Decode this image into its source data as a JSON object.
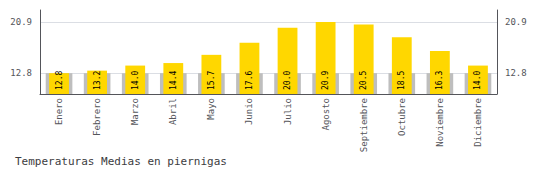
{
  "chart_data": {
    "type": "bar",
    "title": "Temperaturas Medias en piernigas",
    "categories": [
      "Enero",
      "Febrero",
      "Marzo",
      "Abril",
      "Mayo",
      "Junio",
      "Julio",
      "Agosto",
      "Septiembre",
      "Octubre",
      "Noviembre",
      "Diciembre"
    ],
    "series": [
      {
        "color": "#BEBEBE",
        "values": [
          12.8,
          12.8,
          12.8,
          12.8,
          12.8,
          12.8,
          12.8,
          12.8,
          12.8,
          12.8,
          12.8,
          12.8
        ]
      },
      {
        "color": "#FFD700",
        "values": [
          12.8,
          13.2,
          14.0,
          14.4,
          15.7,
          17.6,
          20.0,
          20.9,
          20.5,
          18.5,
          16.3,
          14.0
        ],
        "value_labels": [
          "12.8",
          "13.2",
          "14.0",
          "14.4",
          "15.7",
          "17.6",
          "20.0",
          "20.9",
          "20.5",
          "18.5",
          "16.3",
          "14.0"
        ],
        "data_labels": true
      }
    ],
    "ylim": [
      9.5,
      22.8
    ],
    "yticks": [
      12.8,
      20.9
    ],
    "y2lim": [
      9.5,
      22.8
    ],
    "y2ticks": [
      12.8,
      20.9
    ],
    "grid": true
  }
}
